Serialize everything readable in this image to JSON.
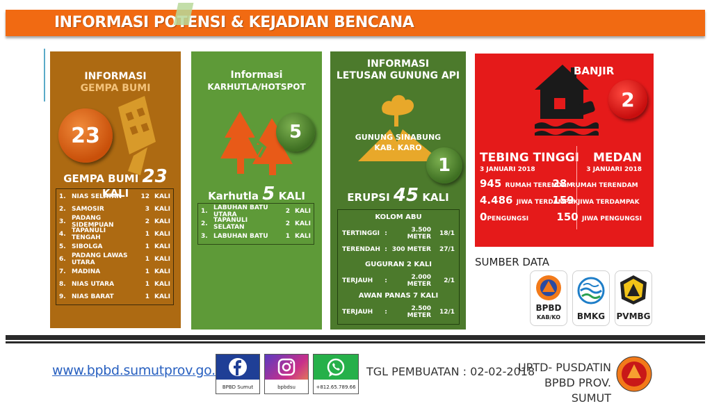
{
  "header": {
    "title": "INFORMASI POTENSI & KEJADIAN BENCANA"
  },
  "gempa": {
    "title_line1": "INFORMASI",
    "title_line2": "GEMPA BUMI",
    "count": "23",
    "summary_prefix": "GEMPA BUMI",
    "summary_value": "23",
    "summary_suffix": "KALI",
    "rows": [
      {
        "no": "1.",
        "place": "NIAS SELATAN",
        "count": "12",
        "unit": "KALI"
      },
      {
        "no": "2.",
        "place": "SAMOSIR",
        "count": "3",
        "unit": "KALI"
      },
      {
        "no": "3.",
        "place": "PADANG SIDEMPUAN",
        "count": "2",
        "unit": "KALI"
      },
      {
        "no": "4.",
        "place": "TAPANULI TENGAH",
        "count": "1",
        "unit": "KALI"
      },
      {
        "no": "5.",
        "place": "SIBOLGA",
        "count": "1",
        "unit": "KALI"
      },
      {
        "no": "6.",
        "place": "PADANG LAWAS UTARA",
        "count": "1",
        "unit": "KALI"
      },
      {
        "no": "7.",
        "place": "MADINA",
        "count": "1",
        "unit": "KALI"
      },
      {
        "no": "8.",
        "place": "NIAS UTARA",
        "count": "1",
        "unit": "KALI"
      },
      {
        "no": "9.",
        "place": "NIAS BARAT",
        "count": "1",
        "unit": "KALI"
      }
    ]
  },
  "karhutla": {
    "title_line1": "Informasi",
    "title_line2": "KARHUTLA/HOTSPOT",
    "count": "5",
    "summary_prefix": "Karhutla",
    "summary_value": "5",
    "summary_suffix": "KALI",
    "rows": [
      {
        "no": "1.",
        "place": "LABUHAN BATU UTARA",
        "count": "2",
        "unit": "KALI"
      },
      {
        "no": "2.",
        "place": "TAPANULI SELATAN",
        "count": "2",
        "unit": "KALI"
      },
      {
        "no": "3.",
        "place": "LABUHAN BATU",
        "count": "1",
        "unit": "KALI"
      }
    ]
  },
  "gunung": {
    "title_line1": "INFORMASI",
    "title_line2": "LETUSAN GUNUNG API",
    "volcano_line1": "GUNUNG SINABUNG",
    "volcano_line2": "KAB. KARO",
    "count": "1",
    "summary_prefix": "ERUPSI",
    "summary_value": "45",
    "summary_suffix": "KALI",
    "kolom_title": "KOLOM ABU",
    "kolom_rows": [
      {
        "label": "TERTINGGI",
        "sep": ":",
        "value": "3.500 METER",
        "date": "18/1"
      },
      {
        "label": "TERENDAH",
        "sep": ":",
        "value": "300 METER",
        "date": "27/1"
      }
    ],
    "guguran_title": "GUGURAN 2 KALI",
    "guguran_rows": [
      {
        "label": "TERJAUH",
        "sep": ":",
        "value": "2.000 METER",
        "date": "2/1"
      }
    ],
    "awan_title": "AWAN PANAS 7 KALI",
    "awan_rows": [
      {
        "label": "TERJAUH",
        "sep": ":",
        "value": "2.500 METER",
        "date": "12/1"
      }
    ]
  },
  "banjir": {
    "title": "BANJIR",
    "count": "2",
    "left": {
      "city": "TEBING TINGGI",
      "date": "3 JANUARI 2018",
      "l1_num": "945",
      "l1_text": "RUMAH TERENDAM",
      "l2_num": "4.486",
      "l2_text": "JIWA TERDAMPAK",
      "l3_num": "0",
      "l3_text": "PENGUNGSI"
    },
    "right": {
      "city": "MEDAN",
      "date": "3 JANUARI 2018",
      "l1_num": "28",
      "l1_text": "RUMAH TERENDAM",
      "l2_num": "159",
      "l2_text": "JIWA TERDAMPAK",
      "l3_num": "150",
      "l3_text": "JIWA PENGUNGSI"
    }
  },
  "sources": {
    "label": "SUMBER DATA",
    "bpbd_line1": "BPBD",
    "bpbd_line2": "KAB/KO",
    "bmkg": "BMKG",
    "pvmbg": "PVMBG"
  },
  "footer": {
    "url": "www.bpbd.sumutprov.go.id",
    "facebook": "BPBD Sumut",
    "instagram": "bpbdsu",
    "whatsapp": "+812.65.789.66",
    "tgl": "TGL PEMBUATAN : 02-02-2018",
    "upt_line1": "UPTD- PUSDATIN",
    "upt_line2": "BPBD PROV. SUMUT"
  },
  "colors": {
    "banner": "#f16a12",
    "gempa_panel": "#ad6a12",
    "karhutla_panel": "#5e9a38",
    "gunung_panel": "#4c7a2c",
    "banjir_panel": "#e51a1a"
  },
  "icons": [
    "building-collapse-icon",
    "forest-fire-icon",
    "volcano-icon",
    "flood-house-icon",
    "facebook-icon",
    "instagram-icon",
    "whatsapp-icon",
    "bpbd-logo",
    "bmkg-logo",
    "pvmbg-logo"
  ]
}
